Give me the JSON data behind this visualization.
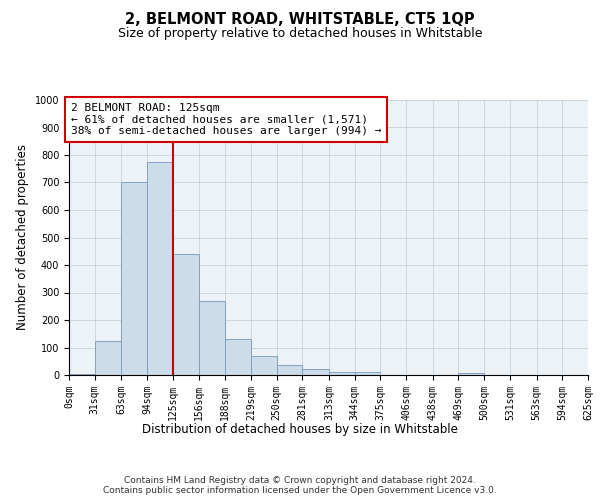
{
  "title": "2, BELMONT ROAD, WHITSTABLE, CT5 1QP",
  "subtitle": "Size of property relative to detached houses in Whitstable",
  "xlabel": "Distribution of detached houses by size in Whitstable",
  "ylabel": "Number of detached properties",
  "bar_color": "#ccdce8",
  "bar_edge_color": "#7799bb",
  "grid_color": "#b8ccd8",
  "background_color": "#edf2f7",
  "marker_value": 125,
  "marker_color": "#cc0000",
  "annotation_text": "2 BELMONT ROAD: 125sqm\n← 61% of detached houses are smaller (1,571)\n38% of semi-detached houses are larger (994) →",
  "annotation_box_facecolor": "#ffffff",
  "annotation_box_edgecolor": "#cc0000",
  "bins": [
    0,
    31,
    63,
    94,
    125,
    156,
    188,
    219,
    250,
    281,
    313,
    344,
    375,
    406,
    438,
    469,
    500,
    531,
    563,
    594,
    625
  ],
  "counts": [
    5,
    125,
    700,
    775,
    440,
    270,
    130,
    68,
    38,
    22,
    12,
    10,
    0,
    0,
    0,
    8,
    0,
    0,
    0,
    0
  ],
  "ylim": [
    0,
    1000
  ],
  "yticks": [
    0,
    100,
    200,
    300,
    400,
    500,
    600,
    700,
    800,
    900,
    1000
  ],
  "footer_text": "Contains HM Land Registry data © Crown copyright and database right 2024.\nContains public sector information licensed under the Open Government Licence v3.0.",
  "title_fontsize": 10.5,
  "subtitle_fontsize": 9,
  "axlabel_fontsize": 8.5,
  "tick_fontsize": 7,
  "footer_fontsize": 6.5,
  "annot_fontsize": 8
}
